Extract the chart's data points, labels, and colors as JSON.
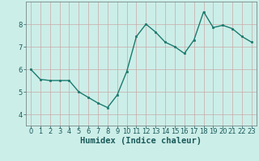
{
  "x": [
    0,
    1,
    2,
    3,
    4,
    5,
    6,
    7,
    8,
    9,
    10,
    11,
    12,
    13,
    14,
    15,
    16,
    17,
    18,
    19,
    20,
    21,
    22,
    23
  ],
  "y": [
    6.0,
    5.55,
    5.5,
    5.5,
    5.5,
    5.0,
    4.75,
    4.5,
    4.3,
    4.85,
    5.9,
    7.45,
    8.0,
    7.65,
    7.2,
    7.0,
    6.7,
    7.3,
    8.55,
    7.85,
    7.95,
    7.8,
    7.45,
    7.2
  ],
  "line_color": "#1a7a6e",
  "bg_color": "#cceee8",
  "grid_color": "#c8a8a8",
  "xlabel": "Humidex (Indice chaleur)",
  "xlim": [
    -0.5,
    23.5
  ],
  "ylim": [
    3.5,
    9.0
  ],
  "yticks": [
    4,
    5,
    6,
    7,
    8
  ],
  "xticks": [
    0,
    1,
    2,
    3,
    4,
    5,
    6,
    7,
    8,
    9,
    10,
    11,
    12,
    13,
    14,
    15,
    16,
    17,
    18,
    19,
    20,
    21,
    22,
    23
  ],
  "marker": "s",
  "marker_size": 2.0,
  "line_width": 1.0,
  "xlabel_fontsize": 7.5,
  "tick_fontsize": 6.0,
  "fig_width": 3.2,
  "fig_height": 2.0,
  "dpi": 100
}
